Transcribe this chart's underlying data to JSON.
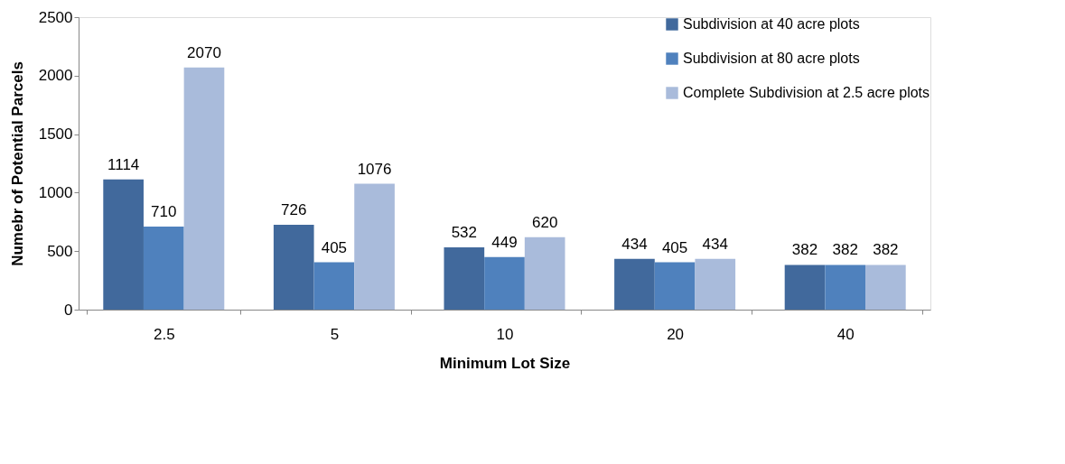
{
  "chart_data": {
    "type": "bar",
    "xlabel": "Minimum Lot Size",
    "ylabel": "Numebr of Potential Parcels",
    "categories": [
      "2.5",
      "5",
      "10",
      "20",
      "40"
    ],
    "series": [
      {
        "name": "Subdivision at 40 acre plots",
        "color": "#41699c",
        "values": [
          1114,
          726,
          532,
          434,
          382
        ]
      },
      {
        "name": "Subdivision at 80 acre plots",
        "color": "#4f81bd",
        "values": [
          710,
          405,
          449,
          405,
          382
        ]
      },
      {
        "name": "Complete Subdivision at 2.5 acre plots",
        "color": "#a9bbdb",
        "values": [
          2070,
          1076,
          620,
          434,
          382
        ]
      }
    ],
    "ylim": [
      0,
      2500
    ],
    "yticks": [
      0,
      500,
      1000,
      1500,
      2000,
      2500
    ],
    "data_labels": true,
    "legend": "top right",
    "grid": false
  }
}
